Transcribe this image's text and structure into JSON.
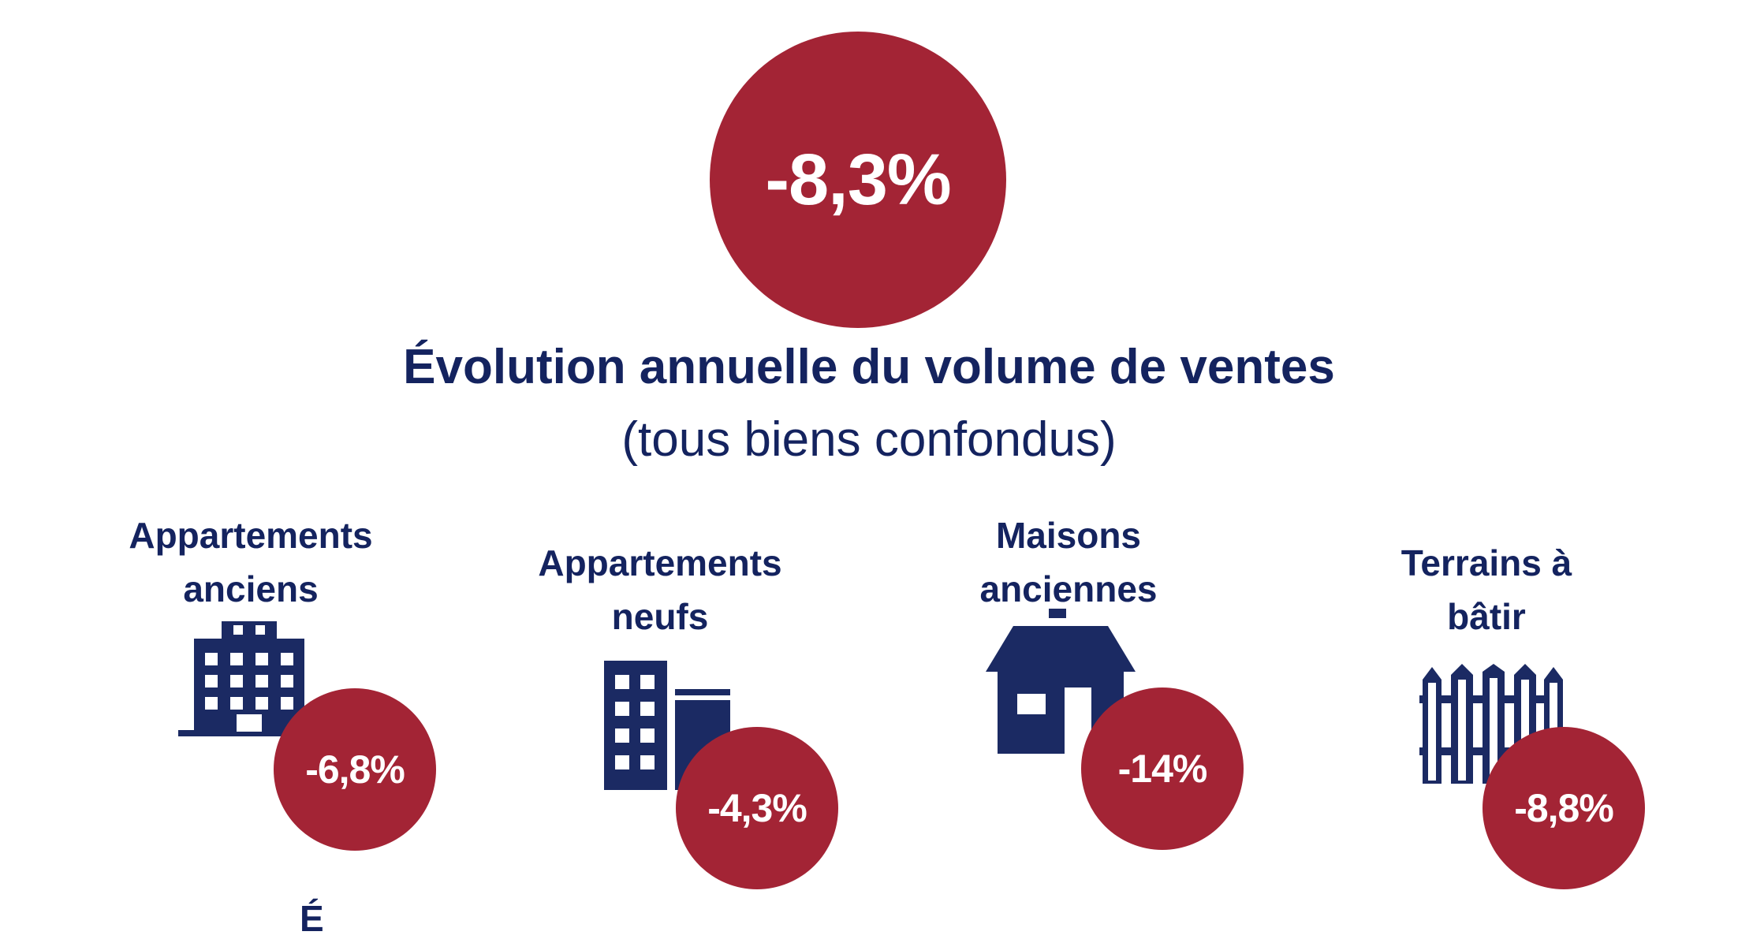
{
  "headline": {
    "value": "-8,3%",
    "title": "Évolution annuelle du volume de ventes",
    "subtitle": "(tous biens confondus)"
  },
  "categories": [
    {
      "label_line1": "Appartements",
      "label_line2": "anciens",
      "value": "-6,8%",
      "icon": "apartment-building-icon"
    },
    {
      "label_line1": "Appartements",
      "label_line2": "neufs",
      "value": "-4,3%",
      "icon": "new-apartment-buildings-icon"
    },
    {
      "label_line1": "Maisons",
      "label_line2": "anciennes",
      "value": "-14%",
      "icon": "house-icon"
    },
    {
      "label_line1": "Terrains à",
      "label_line2": "bâtir",
      "value": "-8,8%",
      "icon": "fence-icon"
    }
  ],
  "bottom_fragment": "É",
  "colors": {
    "accent": "#a32435",
    "text": "#14235f",
    "icon": "#1b2a63"
  }
}
